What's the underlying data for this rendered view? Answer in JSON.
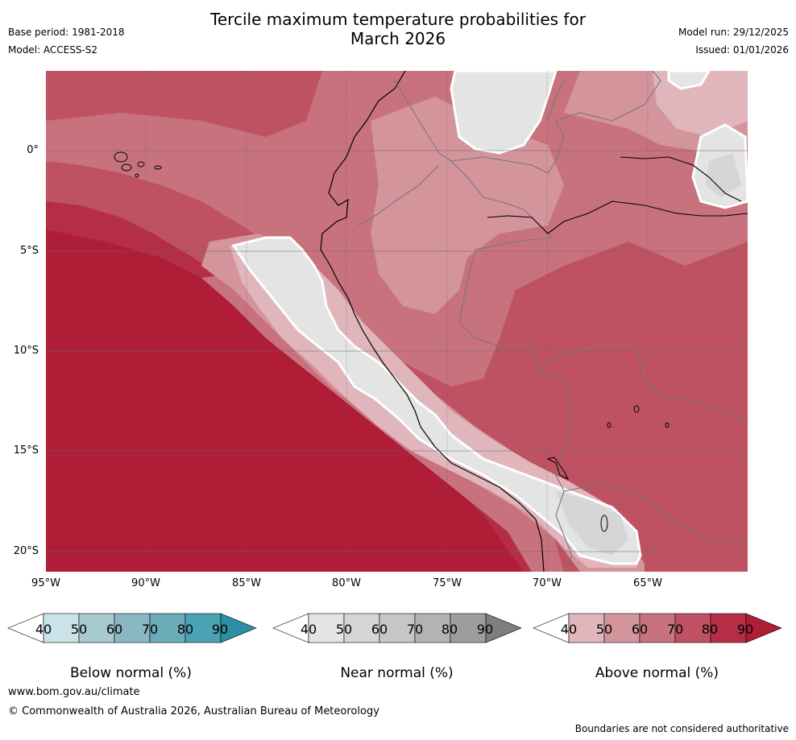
{
  "title": {
    "line1": "Tercile maximum temperature probabilities for",
    "line2": "March 2026"
  },
  "meta_left": {
    "base_period": "Base period: 1981-2018",
    "model": "Model: ACCESS-S2"
  },
  "meta_right": {
    "model_run": "Model run: 29/12/2025",
    "issued": "Issued: 01/01/2026"
  },
  "map": {
    "lon_labels": [
      "95°W",
      "90°W",
      "85°W",
      "80°W",
      "75°W",
      "70°W",
      "65°W"
    ],
    "lat_labels": [
      "0°",
      "5°S",
      "10°S",
      "15°S",
      "20°S"
    ]
  },
  "colorbars": [
    {
      "name": "below",
      "caption": "Below normal (%)",
      "ticks": [
        "40",
        "50",
        "60",
        "70",
        "80",
        "90"
      ],
      "colors": [
        "#ffffff",
        "#c9e3e8",
        "#a7c9cf",
        "#89b7c2",
        "#6aacb8",
        "#4aa2b2",
        "#2e8ea3"
      ]
    },
    {
      "name": "near",
      "caption": "Near normal (%)",
      "ticks": [
        "40",
        "50",
        "60",
        "70",
        "80",
        "90"
      ],
      "colors": [
        "#ffffff",
        "#e4e4e4",
        "#d6d6d6",
        "#c6c6c6",
        "#b3b3b3",
        "#9d9d9d",
        "#7e7e7e"
      ]
    },
    {
      "name": "above",
      "caption": "Above normal (%)",
      "ticks": [
        "40",
        "50",
        "60",
        "70",
        "80",
        "90"
      ],
      "colors": [
        "#ffffff",
        "#e0b6bc",
        "#d4949c",
        "#c8727e",
        "#bf5262",
        "#b42f46",
        "#b01d36"
      ]
    }
  ],
  "footer": {
    "url": "www.bom.gov.au/climate",
    "copyright": "© Commonwealth of Australia 2026, Australian Bureau of Meteorology",
    "disclaimer": "Boundaries are not considered authoritative"
  },
  "colors": {
    "above_80": "#b42f46",
    "above_90": "#b01d36",
    "near_50": "#e4e4e4",
    "above_70": "#bf5262",
    "above_60": "#c8727e"
  }
}
